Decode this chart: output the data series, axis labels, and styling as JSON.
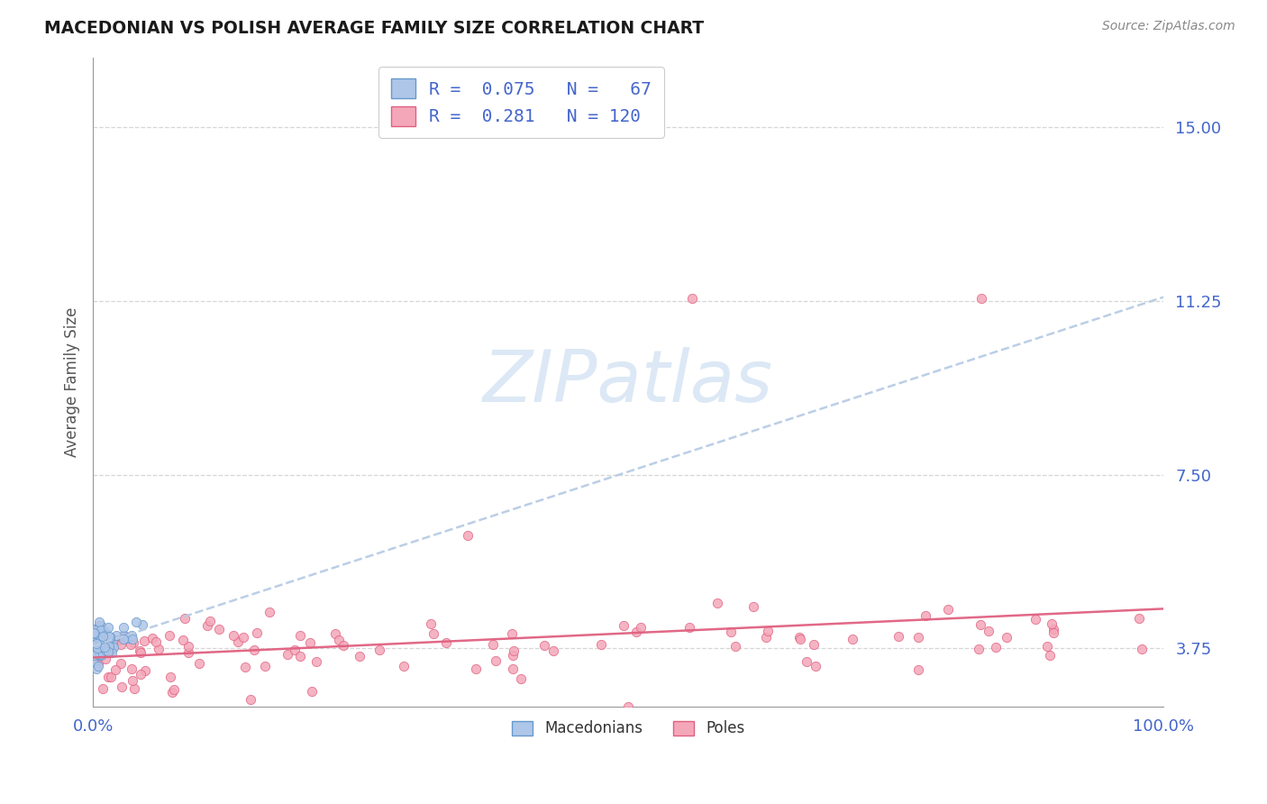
{
  "title": "MACEDONIAN VS POLISH AVERAGE FAMILY SIZE CORRELATION CHART",
  "source_text": "Source: ZipAtlas.com",
  "ylabel": "Average Family Size",
  "xlim": [
    0.0,
    1.0
  ],
  "ylim": [
    2.5,
    16.5
  ],
  "yticks": [
    3.75,
    7.5,
    11.25,
    15.0
  ],
  "xticks": [
    0.0,
    1.0
  ],
  "xticklabels": [
    "0.0%",
    "100.0%"
  ],
  "yticklabels": [
    "3.75",
    "7.50",
    "11.25",
    "15.00"
  ],
  "macedonian_color": "#aec6e8",
  "macedonian_edge": "#6699cc",
  "polish_color": "#f4a7b9",
  "polish_edge": "#e06080",
  "trend_macedonian_color": "#b8cce4",
  "trend_polish_color": "#e06080",
  "watermark": "ZIPatlas",
  "watermark_color": "#dce8f5",
  "title_color": "#1a1a1a",
  "axis_color": "#4466cc",
  "grid_color": "#cccccc",
  "background_color": "#ffffff",
  "legend_label_macedonian": "R =  0.075   N =   67",
  "legend_label_polish": "R =  0.281   N = 120"
}
